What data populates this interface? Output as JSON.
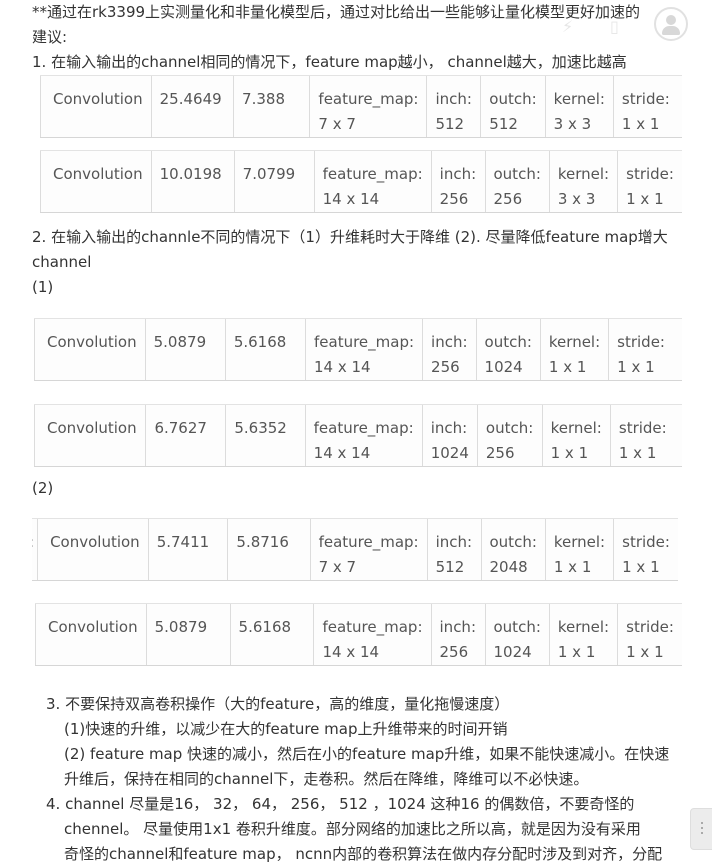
{
  "intro": {
    "line1": "**通过在rk3399上实测量化和非量化模型后，通过对比给出一些能够让量化模型更好加速的",
    "line2": "建议:"
  },
  "point1": "1. 在输入输出的channel相同的情况下，feature map越小， channel越大，加速比越高",
  "point2": {
    "line1": "2. 在输入输出的channle不同的情况下（1）升维耗时大于降维 (2). 尽量降低feature map增大",
    "line2": "channel"
  },
  "sub1": "(1)",
  "sub2": "(2)",
  "tables": [
    {
      "op": "Convolution",
      "v1": "25.4649",
      "v2": "7.388",
      "fm": [
        "feature_map:",
        "7 x 7"
      ],
      "inch": [
        "inch:",
        "512"
      ],
      "outch": [
        "outch:",
        "512"
      ],
      "kernel": [
        "kernel:",
        "3 x 3"
      ],
      "stride": [
        "stride:",
        "1 x 1"
      ]
    },
    {
      "op": "Convolution",
      "v1": "10.0198",
      "v2": "7.0799",
      "fm": [
        "feature_map:",
        "14 x 14"
      ],
      "inch": [
        "inch:",
        "256"
      ],
      "outch": [
        "outch:",
        "256"
      ],
      "kernel": [
        "kernel:",
        "3 x 3"
      ],
      "stride": [
        "stride:",
        "1 x 1"
      ]
    },
    {
      "op": "Convolution",
      "v1": "5.0879",
      "v2": "5.6168",
      "fm": [
        "feature_map:",
        "14 x 14"
      ],
      "inch": [
        "inch:",
        "256"
      ],
      "outch": [
        "outch:",
        "1024"
      ],
      "kernel": [
        "kernel:",
        "1 x 1"
      ],
      "stride": [
        "stride:",
        "1 x 1"
      ]
    },
    {
      "op": "Convolution",
      "v1": "6.7627",
      "v2": "5.6352",
      "fm": [
        "feature_map:",
        "14 x 14"
      ],
      "inch": [
        "inch:",
        "1024"
      ],
      "outch": [
        "outch:",
        "256"
      ],
      "kernel": [
        "kernel:",
        "1 x 1"
      ],
      "stride": [
        "stride:",
        "1 x 1"
      ]
    },
    {
      "op": "Convolution",
      "v1": "5.7411",
      "v2": "5.8716",
      "fm": [
        "feature_map:",
        "7 x 7"
      ],
      "inch": [
        "inch:",
        "512"
      ],
      "outch": [
        "outch:",
        "2048"
      ],
      "kernel": [
        "kernel:",
        "1 x 1"
      ],
      "stride": [
        "stride:",
        "1 x 1"
      ],
      "lead": ":"
    },
    {
      "op": "Convolution",
      "v1": "5.0879",
      "v2": "5.6168",
      "fm": [
        "feature_map:",
        "14 x 14"
      ],
      "inch": [
        "inch:",
        "256"
      ],
      "outch": [
        "outch:",
        "1024"
      ],
      "kernel": [
        "kernel:",
        "1 x 1"
      ],
      "stride": [
        "stride:",
        "1 x 1"
      ]
    }
  ],
  "point3": {
    "title": "3. 不要保持双高卷积操作（大的feature，高的维度，量化拖慢速度）",
    "a": "(1)快速的升维，以减少在大的feature map上升维带来的时间开销",
    "b1": "(2) feature map 快速的减小，然后在小的feature map升维，如果不能快速减小。在快速",
    "b2": "升维后，保持在相同的channel下，走卷积。然后在降维，降维可以不必快速。"
  },
  "point4": {
    "l1": "4. channel 尽量是16， 32， 64， 256， 512 ，1024 这种16 的偶数倍，不要奇怪的",
    "l2": "chennel。 尽量使用1x1 卷积升维度。部分网络的加速比之所以高，就是因为没有采用",
    "l3": "奇怪的channel和feature map， ncnn内部的卷积算法在做内存分配时涉及到对齐，分配"
  },
  "icons": {
    "avatar": "user-avatar-icon",
    "lightning": "lightning-icon",
    "doc": "document-icon",
    "menu": "more-vertical-icon"
  }
}
